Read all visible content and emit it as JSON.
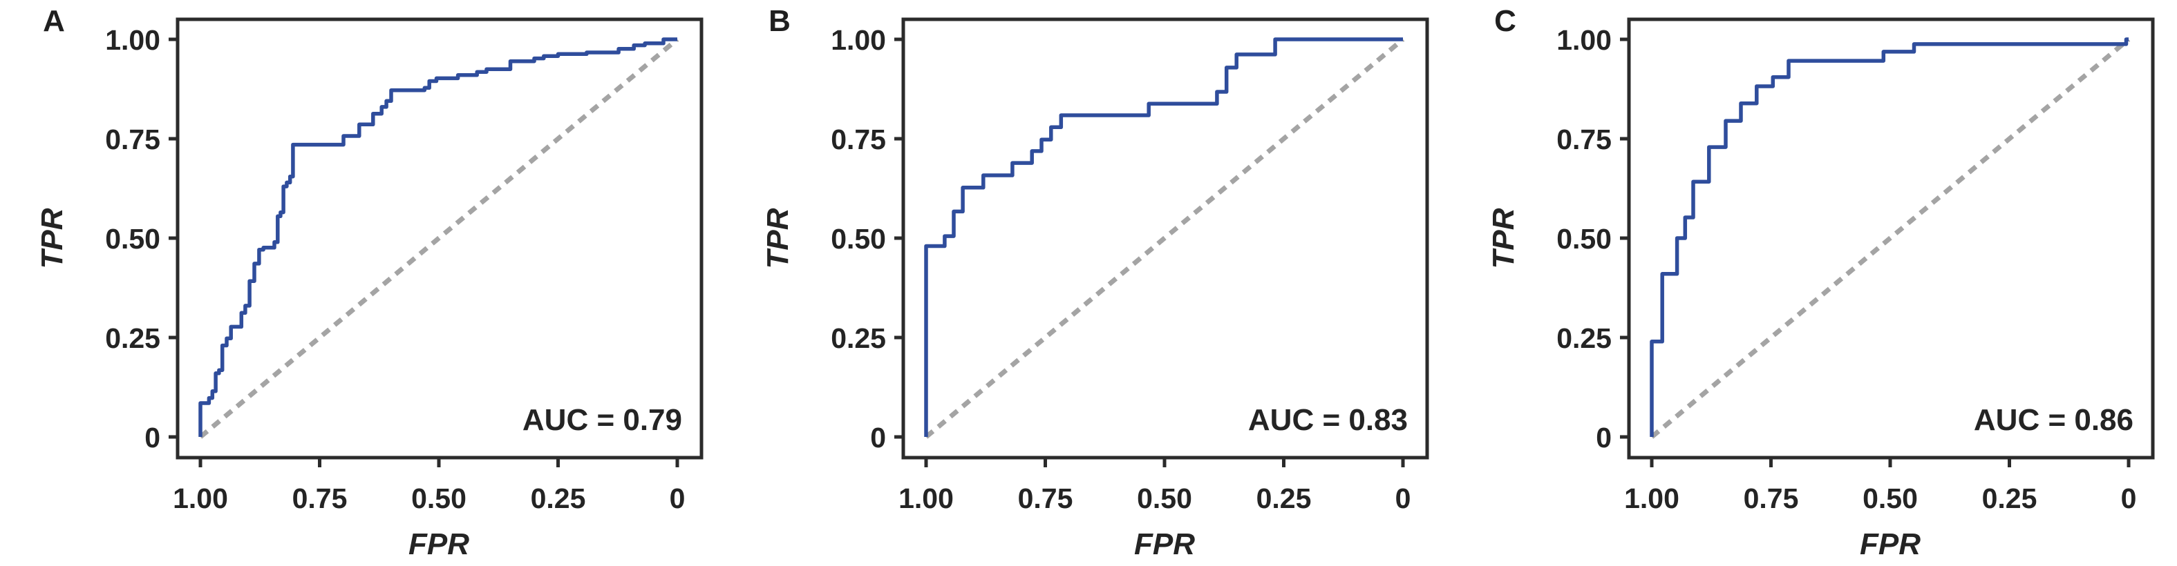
{
  "figure": {
    "background": "#ffffff",
    "curve_color": "#2f4d9c",
    "diagonal_color": "#a4a4a4",
    "axis_color": "#2b2b2b",
    "text_color": "#242424"
  },
  "chart_data": [
    {
      "type": "line",
      "panel_label": "A",
      "xlabel": "FPR",
      "ylabel": "TPR",
      "annotation": "AUC = 0.79",
      "auc": 0.79,
      "x_axis_reversed": true,
      "xlim": [
        1.0,
        0.0
      ],
      "ylim": [
        0.0,
        1.0
      ],
      "grid": false,
      "legend": "none",
      "x_ticks": [
        {
          "label": "1.00",
          "value": 1.0
        },
        {
          "label": "0.75",
          "value": 0.75
        },
        {
          "label": "0.50",
          "value": 0.5
        },
        {
          "label": "0.25",
          "value": 0.25
        },
        {
          "label": "0",
          "value": 0.0
        }
      ],
      "y_ticks": [
        {
          "label": "0",
          "value": 0.0
        },
        {
          "label": "0.25",
          "value": 0.25
        },
        {
          "label": "0.50",
          "value": 0.5
        },
        {
          "label": "0.75",
          "value": 0.75
        },
        {
          "label": "1.00",
          "value": 1.0
        }
      ],
      "diagonal_reference": true,
      "roc_points": [
        [
          1.0,
          0.0
        ],
        [
          1.0,
          0.085
        ],
        [
          0.982,
          0.085
        ],
        [
          0.982,
          0.098
        ],
        [
          0.975,
          0.098
        ],
        [
          0.975,
          0.115
        ],
        [
          0.968,
          0.115
        ],
        [
          0.968,
          0.16
        ],
        [
          0.961,
          0.16
        ],
        [
          0.961,
          0.168
        ],
        [
          0.954,
          0.168
        ],
        [
          0.954,
          0.23
        ],
        [
          0.945,
          0.23
        ],
        [
          0.945,
          0.248
        ],
        [
          0.936,
          0.248
        ],
        [
          0.936,
          0.277
        ],
        [
          0.914,
          0.277
        ],
        [
          0.914,
          0.312
        ],
        [
          0.906,
          0.312
        ],
        [
          0.906,
          0.33
        ],
        [
          0.897,
          0.33
        ],
        [
          0.897,
          0.392
        ],
        [
          0.887,
          0.392
        ],
        [
          0.887,
          0.436
        ],
        [
          0.877,
          0.436
        ],
        [
          0.877,
          0.471
        ],
        [
          0.868,
          0.471
        ],
        [
          0.868,
          0.476
        ],
        [
          0.845,
          0.476
        ],
        [
          0.845,
          0.49
        ],
        [
          0.838,
          0.49
        ],
        [
          0.838,
          0.555
        ],
        [
          0.832,
          0.555
        ],
        [
          0.832,
          0.565
        ],
        [
          0.826,
          0.565
        ],
        [
          0.826,
          0.63
        ],
        [
          0.819,
          0.63
        ],
        [
          0.819,
          0.64
        ],
        [
          0.812,
          0.64
        ],
        [
          0.812,
          0.655
        ],
        [
          0.806,
          0.655
        ],
        [
          0.806,
          0.735
        ],
        [
          0.7,
          0.735
        ],
        [
          0.7,
          0.757
        ],
        [
          0.667,
          0.757
        ],
        [
          0.667,
          0.786
        ],
        [
          0.638,
          0.786
        ],
        [
          0.638,
          0.813
        ],
        [
          0.62,
          0.813
        ],
        [
          0.62,
          0.83
        ],
        [
          0.61,
          0.83
        ],
        [
          0.61,
          0.845
        ],
        [
          0.6,
          0.845
        ],
        [
          0.6,
          0.872
        ],
        [
          0.53,
          0.872
        ],
        [
          0.53,
          0.878
        ],
        [
          0.52,
          0.878
        ],
        [
          0.52,
          0.895
        ],
        [
          0.505,
          0.895
        ],
        [
          0.505,
          0.902
        ],
        [
          0.46,
          0.902
        ],
        [
          0.46,
          0.91
        ],
        [
          0.42,
          0.91
        ],
        [
          0.42,
          0.918
        ],
        [
          0.4,
          0.918
        ],
        [
          0.4,
          0.925
        ],
        [
          0.35,
          0.925
        ],
        [
          0.35,
          0.945
        ],
        [
          0.3,
          0.945
        ],
        [
          0.3,
          0.952
        ],
        [
          0.28,
          0.952
        ],
        [
          0.28,
          0.958
        ],
        [
          0.25,
          0.958
        ],
        [
          0.25,
          0.963
        ],
        [
          0.19,
          0.963
        ],
        [
          0.19,
          0.967
        ],
        [
          0.123,
          0.967
        ],
        [
          0.123,
          0.976
        ],
        [
          0.091,
          0.976
        ],
        [
          0.091,
          0.985
        ],
        [
          0.068,
          0.985
        ],
        [
          0.068,
          0.99
        ],
        [
          0.029,
          0.99
        ],
        [
          0.029,
          1.0
        ],
        [
          0.0,
          1.0
        ]
      ]
    },
    {
      "type": "line",
      "panel_label": "B",
      "xlabel": "FPR",
      "ylabel": "TPR",
      "annotation": "AUC = 0.83",
      "auc": 0.83,
      "x_axis_reversed": true,
      "xlim": [
        1.0,
        0.0
      ],
      "ylim": [
        0.0,
        1.0
      ],
      "grid": false,
      "legend": "none",
      "x_ticks": [
        {
          "label": "1.00",
          "value": 1.0
        },
        {
          "label": "0.75",
          "value": 0.75
        },
        {
          "label": "0.50",
          "value": 0.5
        },
        {
          "label": "0.25",
          "value": 0.25
        },
        {
          "label": "0",
          "value": 0.0
        }
      ],
      "y_ticks": [
        {
          "label": "0",
          "value": 0.0
        },
        {
          "label": "0.25",
          "value": 0.25
        },
        {
          "label": "0.50",
          "value": 0.5
        },
        {
          "label": "0.75",
          "value": 0.75
        },
        {
          "label": "1.00",
          "value": 1.0
        }
      ],
      "diagonal_reference": true,
      "roc_points": [
        [
          1.0,
          0.0
        ],
        [
          1.0,
          0.48
        ],
        [
          0.961,
          0.48
        ],
        [
          0.961,
          0.505
        ],
        [
          0.942,
          0.505
        ],
        [
          0.942,
          0.567
        ],
        [
          0.923,
          0.567
        ],
        [
          0.923,
          0.627
        ],
        [
          0.88,
          0.627
        ],
        [
          0.88,
          0.658
        ],
        [
          0.819,
          0.658
        ],
        [
          0.819,
          0.689
        ],
        [
          0.778,
          0.689
        ],
        [
          0.778,
          0.719
        ],
        [
          0.758,
          0.719
        ],
        [
          0.758,
          0.748
        ],
        [
          0.738,
          0.748
        ],
        [
          0.738,
          0.779
        ],
        [
          0.717,
          0.779
        ],
        [
          0.717,
          0.809
        ],
        [
          0.533,
          0.809
        ],
        [
          0.533,
          0.838
        ],
        [
          0.39,
          0.838
        ],
        [
          0.39,
          0.868
        ],
        [
          0.37,
          0.868
        ],
        [
          0.37,
          0.929
        ],
        [
          0.349,
          0.929
        ],
        [
          0.349,
          0.962
        ],
        [
          0.268,
          0.962
        ],
        [
          0.268,
          1.0
        ],
        [
          0.0,
          1.0
        ]
      ]
    },
    {
      "type": "line",
      "panel_label": "C",
      "xlabel": "FPR",
      "ylabel": "TPR",
      "annotation": "AUC = 0.86",
      "auc": 0.86,
      "x_axis_reversed": true,
      "xlim": [
        1.0,
        0.0
      ],
      "ylim": [
        0.0,
        1.0
      ],
      "grid": false,
      "legend": "none",
      "x_ticks": [
        {
          "label": "1.00",
          "value": 1.0
        },
        {
          "label": "0.75",
          "value": 0.75
        },
        {
          "label": "0.50",
          "value": 0.5
        },
        {
          "label": "0.25",
          "value": 0.25
        },
        {
          "label": "0",
          "value": 0.0
        }
      ],
      "y_ticks": [
        {
          "label": "0",
          "value": 0.0
        },
        {
          "label": "0.25",
          "value": 0.25
        },
        {
          "label": "0.50",
          "value": 0.5
        },
        {
          "label": "0.75",
          "value": 0.75
        },
        {
          "label": "1.00",
          "value": 1.0
        }
      ],
      "diagonal_reference": true,
      "roc_points": [
        [
          1.0,
          0.0
        ],
        [
          1.0,
          0.24
        ],
        [
          0.978,
          0.24
        ],
        [
          0.978,
          0.41
        ],
        [
          0.947,
          0.41
        ],
        [
          0.947,
          0.5
        ],
        [
          0.93,
          0.5
        ],
        [
          0.93,
          0.552
        ],
        [
          0.913,
          0.552
        ],
        [
          0.913,
          0.642
        ],
        [
          0.88,
          0.642
        ],
        [
          0.88,
          0.729
        ],
        [
          0.845,
          0.729
        ],
        [
          0.845,
          0.795
        ],
        [
          0.813,
          0.795
        ],
        [
          0.813,
          0.839
        ],
        [
          0.78,
          0.839
        ],
        [
          0.78,
          0.882
        ],
        [
          0.746,
          0.882
        ],
        [
          0.746,
          0.905
        ],
        [
          0.713,
          0.905
        ],
        [
          0.713,
          0.946
        ],
        [
          0.514,
          0.946
        ],
        [
          0.514,
          0.969
        ],
        [
          0.45,
          0.969
        ],
        [
          0.45,
          0.988
        ],
        [
          0.005,
          0.988
        ],
        [
          0.005,
          1.0
        ],
        [
          0.0,
          1.0
        ]
      ]
    }
  ]
}
